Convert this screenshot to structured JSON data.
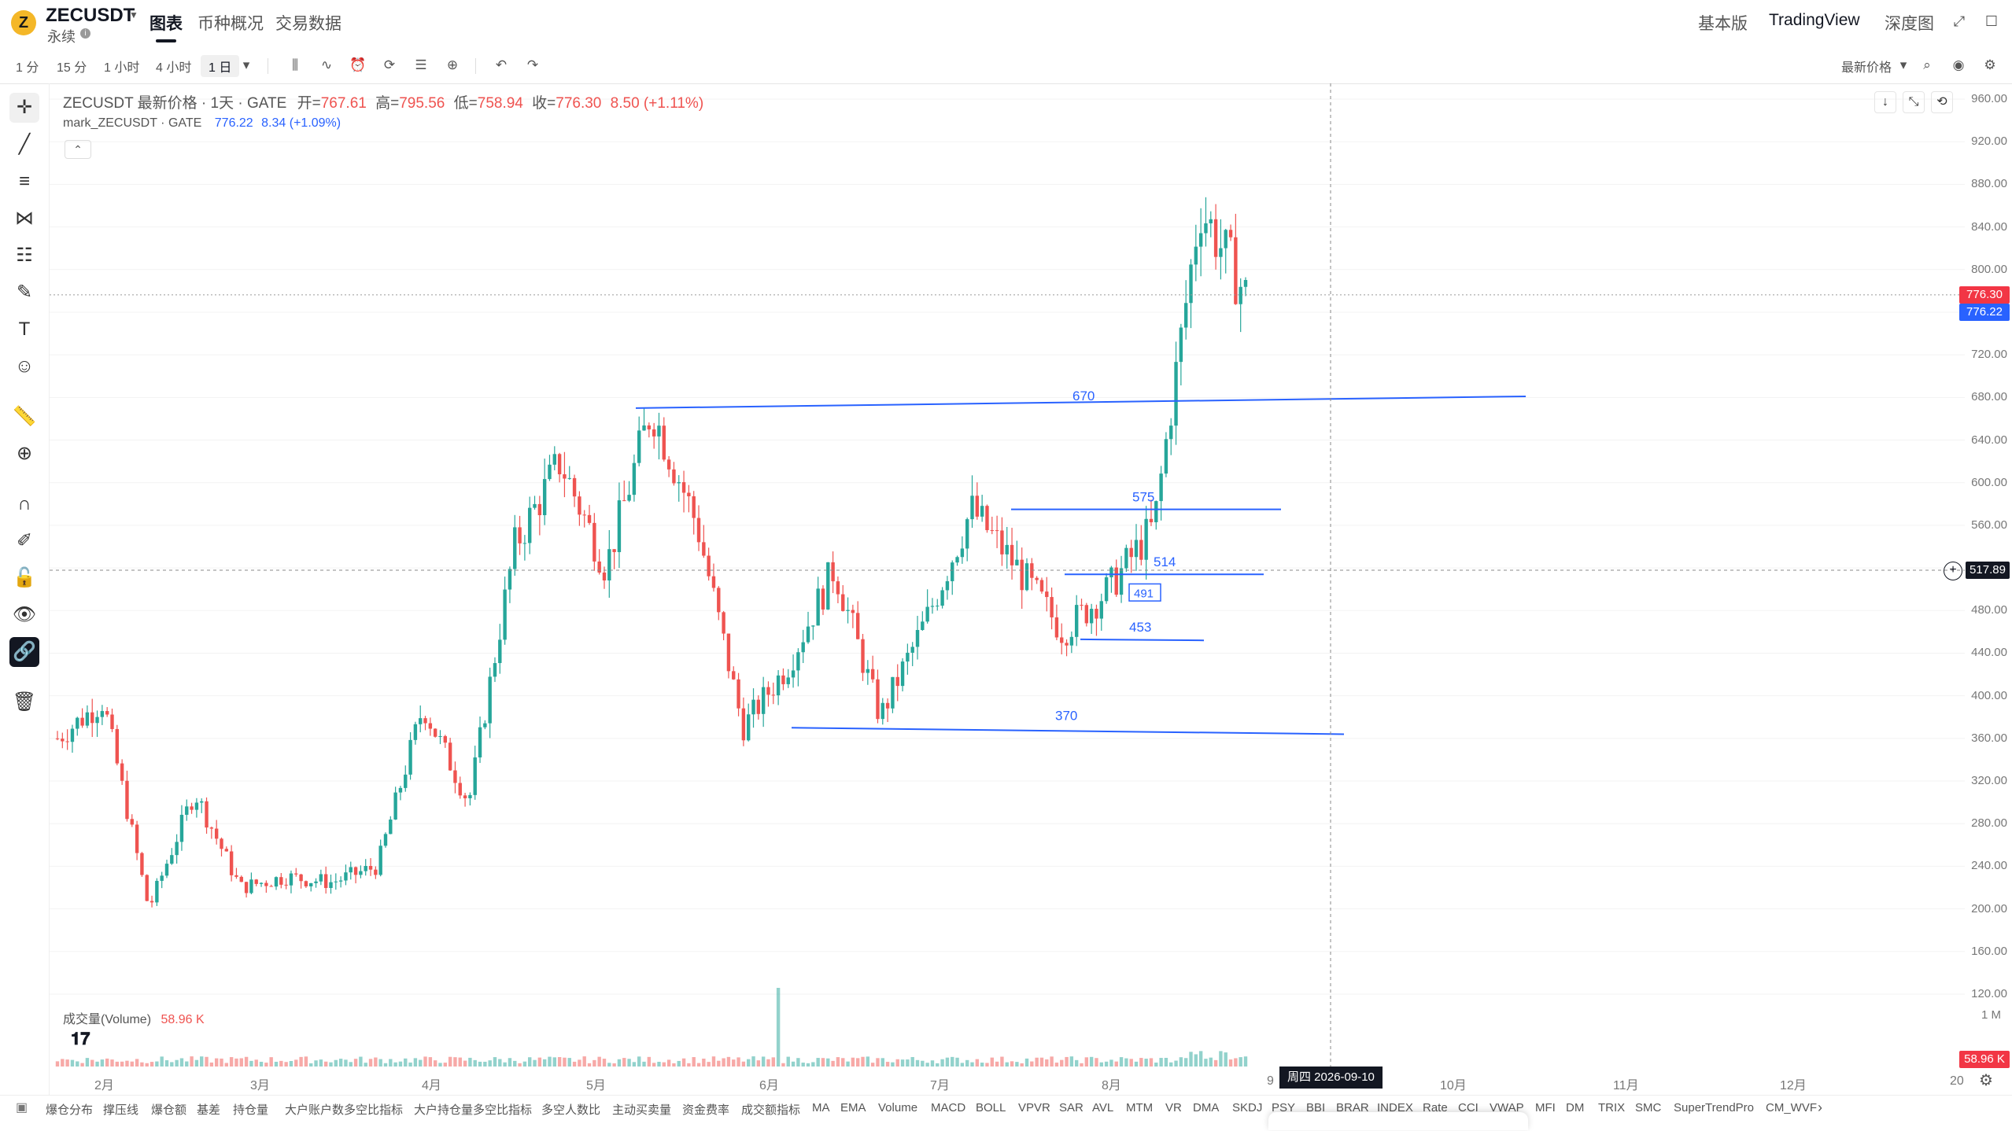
{
  "header": {
    "logo_letter": "Z",
    "symbol": "ZECUSDT",
    "subtitle": "永续",
    "tabs": [
      "图表",
      "币种概况",
      "交易数据"
    ],
    "right_nav": [
      "基本版",
      "TradingView",
      "深度图"
    ]
  },
  "toolbar": {
    "intervals": [
      "1 分",
      "15 分",
      "1 小时",
      "4 小时",
      "1 日"
    ],
    "price_type": "最新价格"
  },
  "legend": {
    "title": "ZECUSDT 最新价格 · 1天 · GATE",
    "open_label": "开=",
    "open": "767.61",
    "high_label": "高=",
    "high": "795.56",
    "low_label": "低=",
    "low": "758.94",
    "close_label": "收=",
    "close": "776.30",
    "change": "8.50 (+1.11%)",
    "mark_title": "mark_ZECUSDT · GATE",
    "mark_value": "776.22",
    "mark_change": "8.34 (+1.09%)"
  },
  "volume": {
    "label": "成交量(Volume)",
    "value": "58.96 K",
    "axis_top": "1 M",
    "last_badge": "58.96 K"
  },
  "price_axis": {
    "ticks": [
      "960.00",
      "920.00",
      "880.00",
      "840.00",
      "800.00",
      "760.00",
      "720.00",
      "680.00",
      "640.00",
      "600.00",
      "560.00",
      "520.00",
      "480.00",
      "440.00",
      "400.00",
      "360.00",
      "320.00",
      "280.00",
      "240.00",
      "200.00",
      "160.00",
      "120.00"
    ],
    "last_price": "776.30",
    "mark_price": "776.22",
    "crosshair_price": "517.89"
  },
  "time_axis": {
    "ticks": [
      "2月",
      "3月",
      "4月",
      "5月",
      "6月",
      "7月",
      "8月",
      "9",
      "10月",
      "11月",
      "12月",
      "20"
    ],
    "crosshair_date": "周四 2026-09-10"
  },
  "drawings": {
    "levels": [
      "670",
      "575",
      "514",
      "453",
      "370",
      "491"
    ]
  },
  "indicators": [
    "爆仓分布",
    "撑压线",
    "爆仓额",
    "基差",
    "持仓量",
    "大户账户数多空比指标",
    "大户持仓量多空比指标",
    "多空人数比",
    "主动买卖量",
    "资金费率",
    "成交额指标",
    "MA",
    "EMA",
    "Volume",
    "MACD",
    "BOLL",
    "VPVR",
    "SAR",
    "AVL",
    "MTM",
    "VR",
    "DMA",
    "SKDJ",
    "PSY",
    "BBI",
    "BRAR",
    "INDEX",
    "Rate",
    "CCI",
    "VWAP",
    "MFI",
    "DM",
    "TRIX",
    "SMC",
    "SuperTrendPro",
    "CM_WVF"
  ],
  "colors": {
    "up": "#26a69a",
    "down": "#ef5350",
    "drawing": "#2962ff",
    "last_price_bg": "#f23645",
    "mark_price_bg": "#2962ff"
  },
  "chart_data": {
    "type": "candlestick",
    "title": "ZECUSDT 最新价格 · 1天 · GATE",
    "ylim": [
      120,
      960
    ],
    "y_ticks": [
      120,
      160,
      200,
      240,
      280,
      320,
      360,
      400,
      440,
      480,
      520,
      560,
      600,
      640,
      680,
      720,
      760,
      800,
      840,
      880,
      920,
      960
    ],
    "horizontal_levels": [
      670,
      575,
      514,
      453,
      370
    ],
    "approx_close_path": [
      [
        "1月末",
        360
      ],
      [
        "2月初",
        395
      ],
      [
        "2月中",
        200
      ],
      [
        "3月初",
        310
      ],
      [
        "3月中",
        220
      ],
      [
        "3月末",
        230
      ],
      [
        "4月初",
        225
      ],
      [
        "4月中",
        240
      ],
      [
        "4月末",
        390
      ],
      [
        "5月初",
        300
      ],
      [
        "5月中",
        540
      ],
      [
        "5月中下",
        620
      ],
      [
        "5月下",
        520
      ],
      [
        "5月末",
        670
      ],
      [
        "6月初",
        560
      ],
      [
        "6月初2",
        370
      ],
      [
        "6月中",
        430
      ],
      [
        "6月下",
        520
      ],
      [
        "7月初",
        380
      ],
      [
        "7月中",
        470
      ],
      [
        "7月下",
        575
      ],
      [
        "8月初",
        520
      ],
      [
        "8月中",
        460
      ],
      [
        "8月下",
        500
      ],
      [
        "9月初",
        560
      ],
      [
        "9月初2",
        860
      ],
      [
        "9月初3",
        776.3
      ]
    ]
  }
}
